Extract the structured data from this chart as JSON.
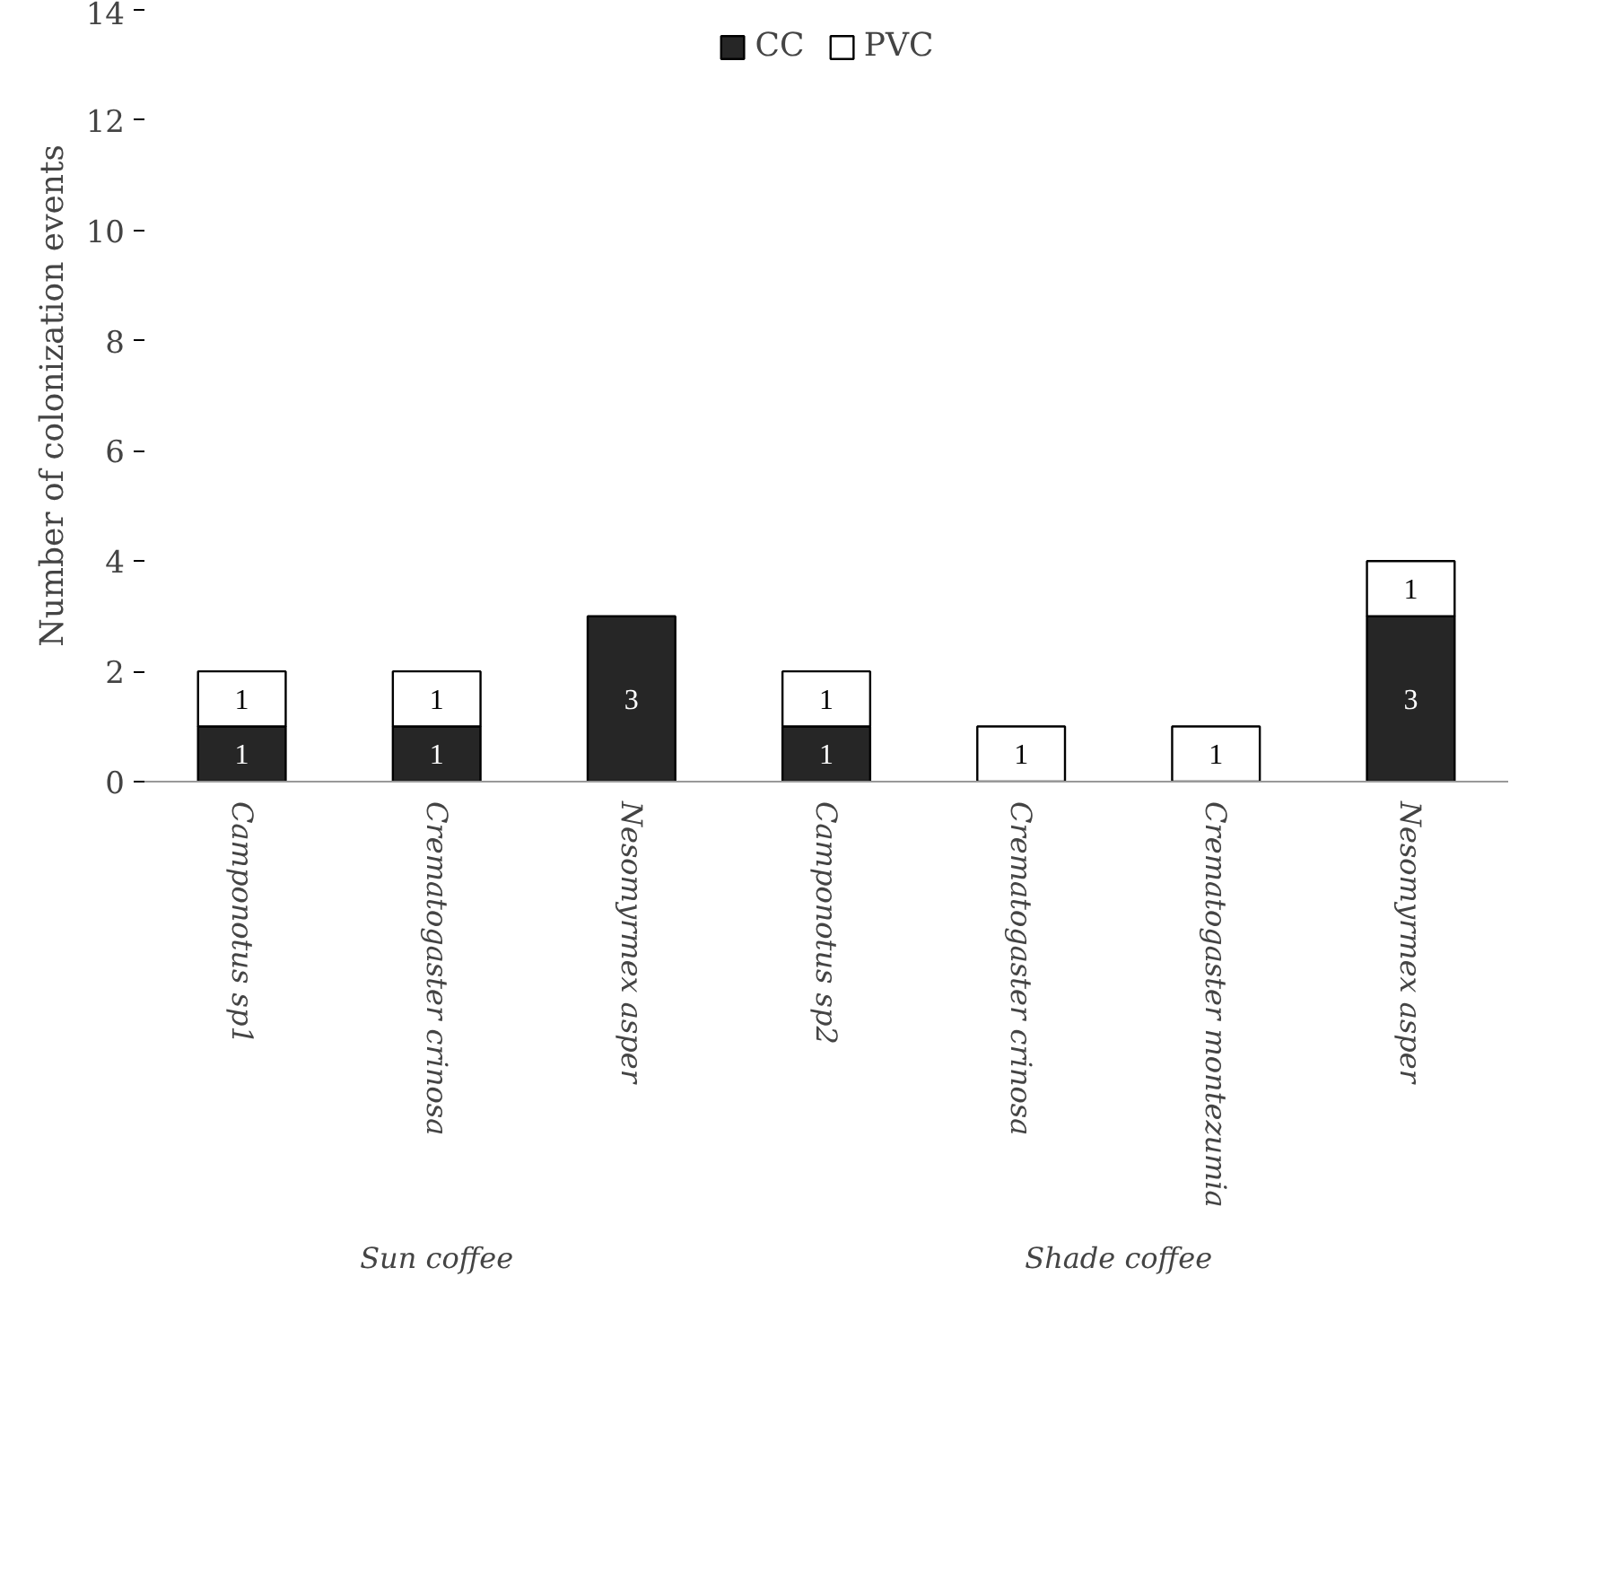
{
  "chart_data": {
    "type": "bar",
    "stacked": true,
    "ylabel": "Number of colonization events",
    "categories": [
      "Camponotus sp1",
      "Crematogaster crinosa",
      "Nesomyrmex asper",
      "Camponotus sp2",
      "Crematogaster crinosa",
      "Crematogaster montezumia",
      "Nesomyrmex asper"
    ],
    "series": [
      {
        "name": "CC",
        "color": "#262626",
        "values": [
          1,
          1,
          3,
          1,
          null,
          null,
          3
        ],
        "value_labels": [
          "1",
          "1",
          "3",
          "1",
          null,
          null,
          "3"
        ]
      },
      {
        "name": "PVC",
        "color": "#ffffff",
        "values": [
          1,
          1,
          null,
          1,
          1,
          1,
          1
        ],
        "value_labels": [
          "1",
          "1",
          null,
          "1",
          "1",
          "1",
          "1"
        ]
      }
    ],
    "annotations": [
      "Sun coffee",
      "Shade coffee"
    ],
    "ylim": [
      0,
      14
    ],
    "yticks": [
      0,
      2,
      4,
      6,
      8,
      10,
      12,
      14
    ],
    "grid": false,
    "legend": "top"
  }
}
